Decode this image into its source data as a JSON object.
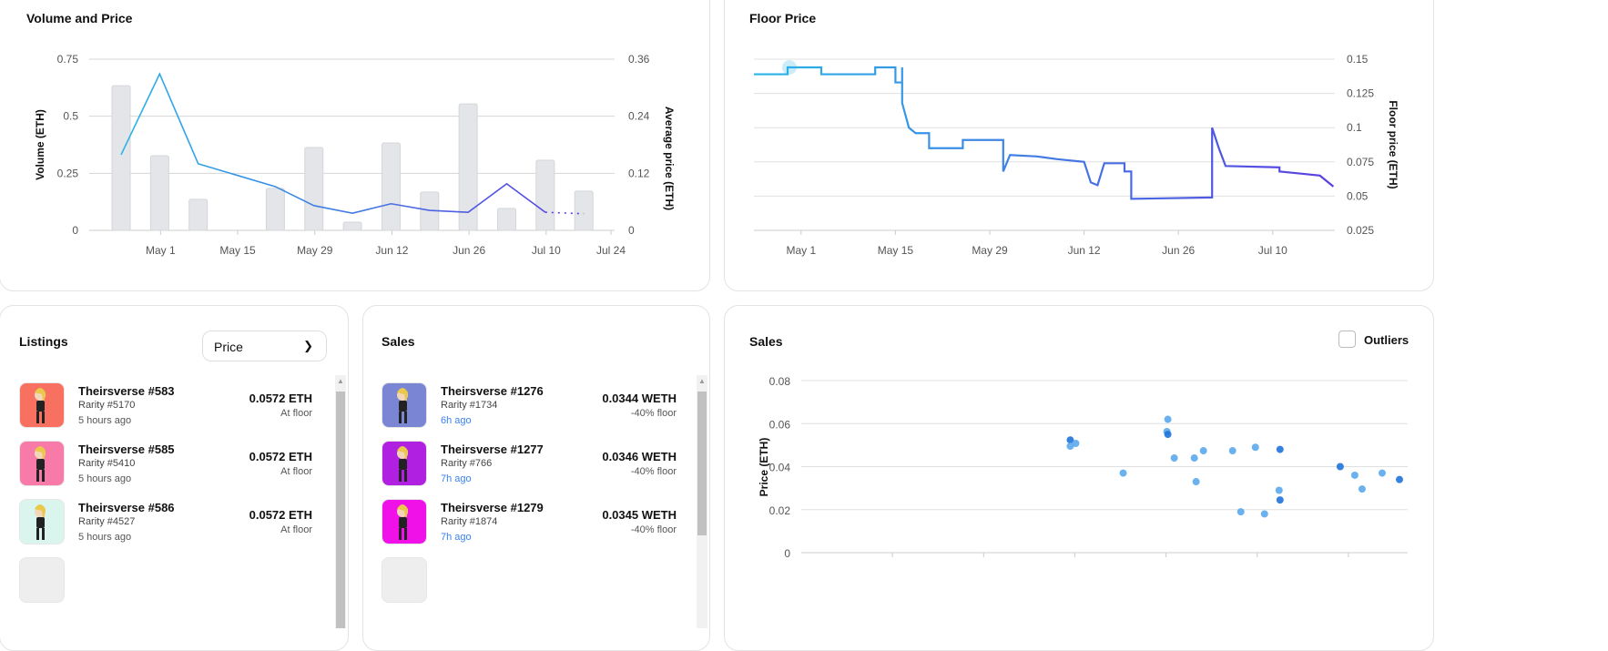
{
  "volume_price": {
    "title": "Volume and Price",
    "chart_data": {
      "type": "bar+line",
      "ylabel_left": "Volume (ETH)",
      "ylabel_right": "Average price (ETH)",
      "ylim_left": [
        0,
        0.75
      ],
      "ylim_right": [
        0,
        0.36
      ],
      "yticks_left": [
        "0",
        "0.25",
        "0.5",
        "0.75"
      ],
      "yticks_right": [
        "0",
        "0.12",
        "0.24",
        "0.36"
      ],
      "xticks": [
        "May 1",
        "May 15",
        "May 29",
        "Jun 12",
        "Jun 26",
        "Jul 10",
        "Jul 24"
      ],
      "categories": [
        "Apr 24",
        "May 1",
        "May 8",
        "May 15",
        "May 22",
        "May 29",
        "Jun 5",
        "Jun 12",
        "Jun 19",
        "Jun 26",
        "Jul 3",
        "Jul 10",
        "Jul 17"
      ],
      "volume": [
        0.634,
        0.327,
        0.136,
        0,
        0.184,
        0.363,
        0.036,
        0.383,
        0.168,
        0.554,
        0.096,
        0.307,
        0.172
      ],
      "avg_price": [
        0.159,
        0.329,
        0.14,
        null,
        0.092,
        0.052,
        0.036,
        0.056,
        0.042,
        0.038,
        0.098,
        0.038,
        0.035
      ],
      "avg_price_dotted_last": true,
      "grid": true,
      "colors": {
        "bar": "#e3e5e8",
        "line_start": "#29b6e8",
        "line_end": "#5b3fe0"
      }
    }
  },
  "floor_price": {
    "title": "Floor Price",
    "chart_data": {
      "type": "line",
      "ylabel": "Floor price (ETH)",
      "ylim": [
        0.025,
        0.15
      ],
      "yticks": [
        "0.025",
        "0.05",
        "0.075",
        "0.1",
        "0.125",
        "0.15"
      ],
      "xticks": [
        "May 1",
        "May 15",
        "May 29",
        "Jun 12",
        "Jun 26",
        "Jul 10"
      ],
      "points": [
        [
          "Apr 24",
          0.139
        ],
        [
          "Apr 29",
          0.139
        ],
        [
          "Apr 29",
          0.144
        ],
        [
          "May 4",
          0.144
        ],
        [
          "May 4",
          0.139
        ],
        [
          "May 12",
          0.139
        ],
        [
          "May 12",
          0.144
        ],
        [
          "May 15",
          0.144
        ],
        [
          "May 15",
          0.133
        ],
        [
          "May 16",
          0.133
        ],
        [
          "May 16",
          0.144
        ],
        [
          "May 16",
          0.118
        ],
        [
          "May 17",
          0.1
        ],
        [
          "May 18",
          0.096
        ],
        [
          "May 20",
          0.096
        ],
        [
          "May 20",
          0.085
        ],
        [
          "May 25",
          0.085
        ],
        [
          "May 25",
          0.091
        ],
        [
          "May 31",
          0.091
        ],
        [
          "May 31",
          0.068
        ],
        [
          "Jun 1",
          0.08
        ],
        [
          "Jun 5",
          0.079
        ],
        [
          "Jun 8",
          0.077
        ],
        [
          "Jun 12",
          0.075
        ],
        [
          "Jun 13",
          0.06
        ],
        [
          "Jun 14",
          0.058
        ],
        [
          "Jun 15",
          0.074
        ],
        [
          "Jun 18",
          0.074
        ],
        [
          "Jun 18",
          0.068
        ],
        [
          "Jun 19",
          0.068
        ],
        [
          "Jun 19",
          0.048
        ],
        [
          "Jul 1",
          0.049
        ],
        [
          "Jul 1",
          0.1
        ],
        [
          "Jul 2",
          0.085
        ],
        [
          "Jul 3",
          0.072
        ],
        [
          "Jul 11",
          0.071
        ],
        [
          "Jul 11",
          0.068
        ],
        [
          "Jul 13",
          0.067
        ],
        [
          "Jul 17",
          0.065
        ],
        [
          "Jul 19",
          0.057
        ]
      ],
      "grid": true,
      "colors": {
        "line_start": "#29b6e8",
        "line_end": "#5b3fe0",
        "highlight": "#bfe9f5"
      }
    }
  },
  "listings": {
    "title": "Listings",
    "sort_select": "Price",
    "items": [
      {
        "name": "Theirsverse #583",
        "rarity": "Rarity #5170",
        "time": "5 hours ago",
        "price": "0.0572 ETH",
        "status": "At floor",
        "bg": "#f87060"
      },
      {
        "name": "Theirsverse #585",
        "rarity": "Rarity #5410",
        "time": "5 hours ago",
        "price": "0.0572 ETH",
        "status": "At floor",
        "bg": "#f77aa8"
      },
      {
        "name": "Theirsverse #586",
        "rarity": "Rarity #4527",
        "time": "5 hours ago",
        "price": "0.0572 ETH",
        "status": "At floor",
        "bg": "#d9f5ee"
      }
    ]
  },
  "sales_list": {
    "title": "Sales",
    "items": [
      {
        "name": "Theirsverse #1276",
        "rarity": "Rarity #1734",
        "time": "6h ago",
        "price": "0.0344 WETH",
        "status": "-40% floor",
        "bg": "#7a86d4"
      },
      {
        "name": "Theirsverse #1277",
        "rarity": "Rarity #766",
        "time": "7h ago",
        "price": "0.0346 WETH",
        "status": "-40% floor",
        "bg": "#b020e0"
      },
      {
        "name": "Theirsverse #1279",
        "rarity": "Rarity #1874",
        "time": "7h ago",
        "price": "0.0345 WETH",
        "status": "-40% floor",
        "bg": "#f010e8"
      }
    ]
  },
  "sales_scatter": {
    "title": "Sales",
    "outliers_label": "Outliers",
    "outliers_checked": false,
    "chart_data": {
      "type": "scatter",
      "ylabel": "Price (ETH)",
      "ylim": [
        0,
        0.08
      ],
      "yticks": [
        "0",
        "0.02",
        "0.04",
        "0.06",
        "0.08"
      ],
      "xlim": [
        0,
        6.65
      ],
      "points": [
        [
          2.95,
          0.0524,
          1
        ],
        [
          2.95,
          0.0495,
          0
        ],
        [
          3.01,
          0.0508,
          0
        ],
        [
          3.53,
          0.037,
          0
        ],
        [
          4.02,
          0.062,
          0
        ],
        [
          4.01,
          0.0563,
          0
        ],
        [
          4.02,
          0.055,
          1
        ],
        [
          4.09,
          0.044,
          0
        ],
        [
          4.31,
          0.044,
          0
        ],
        [
          4.33,
          0.033,
          0
        ],
        [
          4.41,
          0.0474,
          0
        ],
        [
          4.73,
          0.0474,
          0
        ],
        [
          4.82,
          0.019,
          0
        ],
        [
          4.98,
          0.049,
          0
        ],
        [
          5.08,
          0.018,
          0
        ],
        [
          5.24,
          0.029,
          0
        ],
        [
          5.25,
          0.048,
          1
        ],
        [
          5.25,
          0.0245,
          1
        ],
        [
          5.91,
          0.04,
          1
        ],
        [
          6.07,
          0.036,
          0
        ],
        [
          6.15,
          0.0296,
          0
        ],
        [
          6.37,
          0.037,
          0
        ],
        [
          6.56,
          0.034,
          1
        ]
      ],
      "grid": true,
      "colors": {
        "point": "#5aa8ec",
        "point_dense": "#1f73db"
      }
    }
  }
}
